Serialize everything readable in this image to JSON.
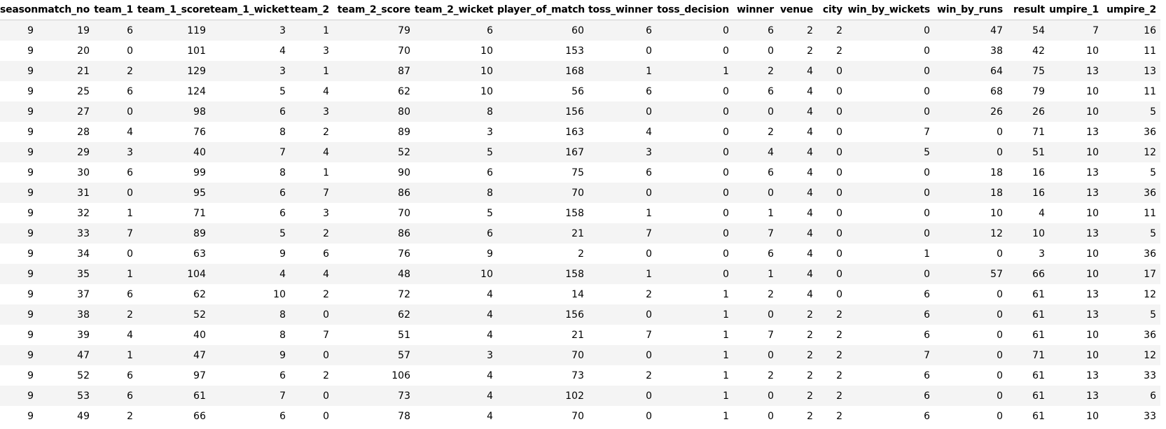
{
  "table": {
    "columns": [
      "season",
      "match_no",
      "team_1",
      "team_1_score",
      "team_1_wicket",
      "team_2",
      "team_2_score",
      "team_2_wicket",
      "player_of_match",
      "toss_winner",
      "toss_decision",
      "winner",
      "venue",
      "city",
      "win_by_wickets",
      "win_by_runs",
      "result",
      "umpire_1",
      "umpire_2"
    ],
    "rows": [
      [
        "9",
        "19",
        "6",
        "119",
        "3",
        "1",
        "79",
        "6",
        "60",
        "6",
        "0",
        "6",
        "2",
        "2",
        "0",
        "47",
        "54",
        "7",
        "16"
      ],
      [
        "9",
        "20",
        "0",
        "101",
        "4",
        "3",
        "70",
        "10",
        "153",
        "0",
        "0",
        "0",
        "2",
        "2",
        "0",
        "38",
        "42",
        "10",
        "11"
      ],
      [
        "9",
        "21",
        "2",
        "129",
        "3",
        "1",
        "87",
        "10",
        "168",
        "1",
        "1",
        "2",
        "4",
        "0",
        "0",
        "64",
        "75",
        "13",
        "13"
      ],
      [
        "9",
        "25",
        "6",
        "124",
        "5",
        "4",
        "62",
        "10",
        "56",
        "6",
        "0",
        "6",
        "4",
        "0",
        "0",
        "68",
        "79",
        "10",
        "11"
      ],
      [
        "9",
        "27",
        "0",
        "98",
        "6",
        "3",
        "80",
        "8",
        "156",
        "0",
        "0",
        "0",
        "4",
        "0",
        "0",
        "26",
        "26",
        "10",
        "5"
      ],
      [
        "9",
        "28",
        "4",
        "76",
        "8",
        "2",
        "89",
        "3",
        "163",
        "4",
        "0",
        "2",
        "4",
        "0",
        "7",
        "0",
        "71",
        "13",
        "36"
      ],
      [
        "9",
        "29",
        "3",
        "40",
        "7",
        "4",
        "52",
        "5",
        "167",
        "3",
        "0",
        "4",
        "4",
        "0",
        "5",
        "0",
        "51",
        "10",
        "12"
      ],
      [
        "9",
        "30",
        "6",
        "99",
        "8",
        "1",
        "90",
        "6",
        "75",
        "6",
        "0",
        "6",
        "4",
        "0",
        "0",
        "18",
        "16",
        "13",
        "5"
      ],
      [
        "9",
        "31",
        "0",
        "95",
        "6",
        "7",
        "86",
        "8",
        "70",
        "0",
        "0",
        "0",
        "4",
        "0",
        "0",
        "18",
        "16",
        "13",
        "36"
      ],
      [
        "9",
        "32",
        "1",
        "71",
        "6",
        "3",
        "70",
        "5",
        "158",
        "1",
        "0",
        "1",
        "4",
        "0",
        "0",
        "10",
        "4",
        "10",
        "11"
      ],
      [
        "9",
        "33",
        "7",
        "89",
        "5",
        "2",
        "86",
        "6",
        "21",
        "7",
        "0",
        "7",
        "4",
        "0",
        "0",
        "12",
        "10",
        "13",
        "5"
      ],
      [
        "9",
        "34",
        "0",
        "63",
        "9",
        "6",
        "76",
        "9",
        "2",
        "0",
        "0",
        "6",
        "4",
        "0",
        "1",
        "0",
        "3",
        "10",
        "36"
      ],
      [
        "9",
        "35",
        "1",
        "104",
        "4",
        "4",
        "48",
        "10",
        "158",
        "1",
        "0",
        "1",
        "4",
        "0",
        "0",
        "57",
        "66",
        "10",
        "17"
      ],
      [
        "9",
        "37",
        "6",
        "62",
        "10",
        "2",
        "72",
        "4",
        "14",
        "2",
        "1",
        "2",
        "4",
        "0",
        "6",
        "0",
        "61",
        "13",
        "12"
      ],
      [
        "9",
        "38",
        "2",
        "52",
        "8",
        "0",
        "62",
        "4",
        "156",
        "0",
        "1",
        "0",
        "2",
        "2",
        "6",
        "0",
        "61",
        "13",
        "5"
      ],
      [
        "9",
        "39",
        "4",
        "40",
        "8",
        "7",
        "51",
        "4",
        "21",
        "7",
        "1",
        "7",
        "2",
        "2",
        "6",
        "0",
        "61",
        "10",
        "36"
      ],
      [
        "9",
        "47",
        "1",
        "47",
        "9",
        "0",
        "57",
        "3",
        "70",
        "0",
        "1",
        "0",
        "2",
        "2",
        "7",
        "0",
        "71",
        "10",
        "12"
      ],
      [
        "9",
        "52",
        "6",
        "97",
        "6",
        "2",
        "106",
        "4",
        "73",
        "2",
        "1",
        "2",
        "2",
        "2",
        "6",
        "0",
        "61",
        "13",
        "33"
      ],
      [
        "9",
        "53",
        "6",
        "61",
        "7",
        "0",
        "73",
        "4",
        "102",
        "0",
        "1",
        "0",
        "2",
        "2",
        "6",
        "0",
        "61",
        "13",
        "6"
      ],
      [
        "9",
        "49",
        "2",
        "66",
        "6",
        "0",
        "78",
        "4",
        "70",
        "0",
        "1",
        "0",
        "2",
        "2",
        "6",
        "0",
        "61",
        "10",
        "33"
      ]
    ]
  },
  "colors": {
    "stripe": "#f4f4f4",
    "background": "#ffffff",
    "text": "#000000"
  }
}
